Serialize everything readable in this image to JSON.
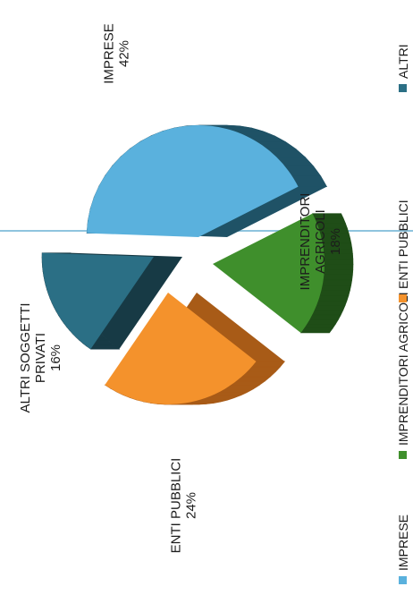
{
  "chart_data": {
    "type": "pie",
    "title": "",
    "series": [
      {
        "name": "IMPRESE",
        "value": 42,
        "color": "#5ab1dd",
        "side_color": "#1f5266"
      },
      {
        "name": "IMPRENDITORI AGRICOLI",
        "value": 18,
        "color": "#3f8f2c",
        "side_color": "#1f4d17"
      },
      {
        "name": "ENTI PUBBLICI",
        "value": 24,
        "color": "#f4922c",
        "side_color": "#a85b17"
      },
      {
        "name": "ALTRI",
        "value": 16,
        "color": "#2b6f85",
        "side_color": "#173a45"
      }
    ],
    "slice_labels": [
      {
        "lines": [
          "IMPRESE",
          "42%"
        ]
      },
      {
        "lines": [
          "IMPRENDITORI",
          "AGRICOLI",
          "18%"
        ]
      },
      {
        "lines": [
          "ENTI PUBBLICI",
          "24%"
        ]
      },
      {
        "lines": [
          "ALTRI SOGGETTI",
          "PRIVATI",
          "16%"
        ]
      }
    ],
    "legend": {
      "position": "bottom",
      "items": [
        {
          "label": "IMPRESE",
          "color": "#5ab1dd"
        },
        {
          "label": "IMPRENDITORI AGRICOLI",
          "color": "#3f8f2c"
        },
        {
          "label": "ENTI PUBBLICI",
          "color": "#f4922c"
        },
        {
          "label": "ALTRI",
          "color": "#2b6f85"
        }
      ]
    },
    "rotation": "page rotated 90° counter-clockwise",
    "divider_color": "#8fc4de"
  }
}
